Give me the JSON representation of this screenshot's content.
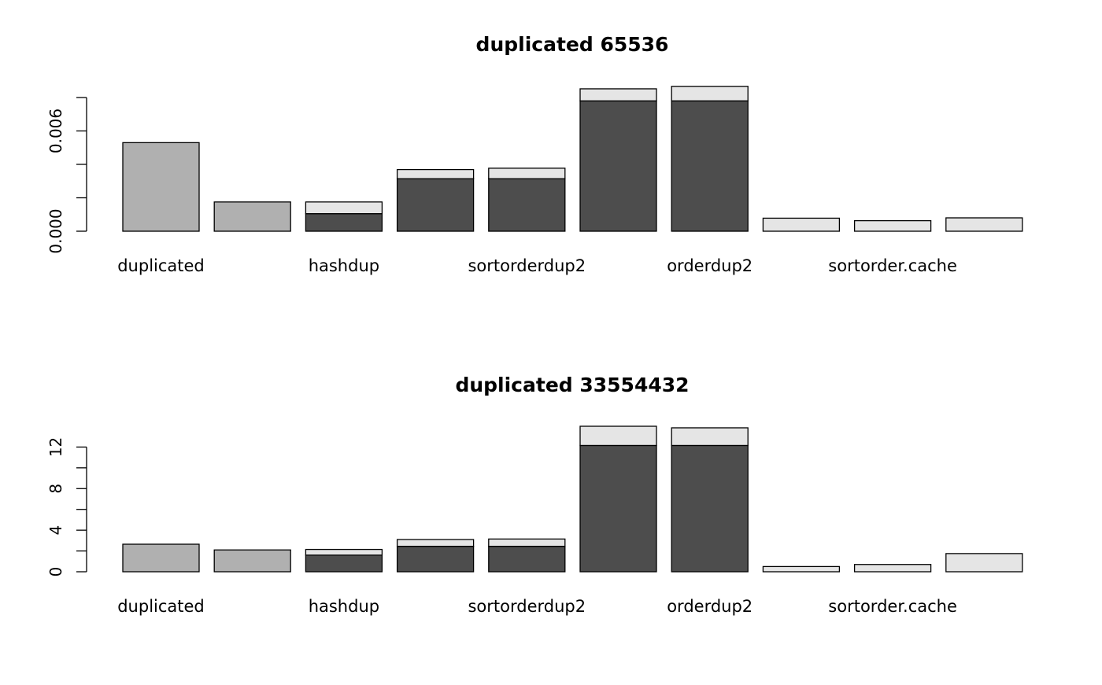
{
  "palette": {
    "base_light": "#b0b0b0",
    "base_dark": "#4d4d4d",
    "top": "#e5e5e5",
    "stroke": "#000000",
    "background": "#ffffff"
  },
  "chart_data": [
    {
      "type": "bar",
      "stacked": true,
      "title": "duplicated 65536",
      "xlabel": "",
      "ylabel": "",
      "ylim": [
        0,
        0.008
      ],
      "y_ticks": [
        0,
        0.002,
        0.004,
        0.006,
        0.008
      ],
      "y_tick_labels": [
        {
          "value": 0,
          "label": "0.000"
        },
        {
          "value": 0.006,
          "label": "0.006"
        }
      ],
      "category_labels": [
        {
          "index": 0,
          "label": "duplicated"
        },
        {
          "index": 2,
          "label": "hashdup"
        },
        {
          "index": 4,
          "label": "sortorderdup2"
        },
        {
          "index": 6,
          "label": "orderdup2"
        },
        {
          "index": 8,
          "label": "sortorder.cache"
        }
      ],
      "series": [
        {
          "values": [
            0.0053,
            0.00175,
            0.00105,
            0.00314,
            0.00314,
            0.0078,
            0.0078,
            0,
            0,
            0
          ],
          "fills": [
            "base_light",
            "base_light",
            "base_dark",
            "base_dark",
            "base_dark",
            "base_dark",
            "base_dark",
            "base_dark",
            "base_dark",
            "base_dark"
          ]
        },
        {
          "values": [
            0,
            0,
            0.0007,
            0.00055,
            0.00063,
            0.00072,
            0.00087,
            0.00078,
            0.00063,
            0.0008
          ],
          "fills": [
            "top",
            "top",
            "top",
            "top",
            "top",
            "top",
            "top",
            "top",
            "top",
            "top"
          ]
        }
      ]
    },
    {
      "type": "bar",
      "stacked": true,
      "title": "duplicated 33554432",
      "xlabel": "",
      "ylabel": "",
      "ylim": [
        0,
        14
      ],
      "y_ticks": [
        0,
        2,
        4,
        6,
        8,
        10,
        12
      ],
      "y_tick_labels": [
        {
          "value": 0,
          "label": "0"
        },
        {
          "value": 4,
          "label": "4"
        },
        {
          "value": 8,
          "label": "8"
        },
        {
          "value": 12,
          "label": "12"
        }
      ],
      "category_labels": [
        {
          "index": 0,
          "label": "duplicated"
        },
        {
          "index": 2,
          "label": "hashdup"
        },
        {
          "index": 4,
          "label": "sortorderdup2"
        },
        {
          "index": 6,
          "label": "orderdup2"
        },
        {
          "index": 8,
          "label": "sortorder.cache"
        }
      ],
      "series": [
        {
          "values": [
            2.65,
            2.1,
            1.6,
            2.45,
            2.45,
            12.15,
            12.15,
            0,
            0,
            0
          ],
          "fills": [
            "base_light",
            "base_light",
            "base_dark",
            "base_dark",
            "base_dark",
            "base_dark",
            "base_dark",
            "base_dark",
            "base_dark",
            "base_dark"
          ]
        },
        {
          "values": [
            0,
            0,
            0.55,
            0.65,
            0.7,
            1.85,
            1.7,
            0.5,
            0.7,
            1.75
          ],
          "fills": [
            "top",
            "top",
            "top",
            "top",
            "top",
            "top",
            "top",
            "top",
            "top",
            "top"
          ]
        }
      ]
    }
  ]
}
